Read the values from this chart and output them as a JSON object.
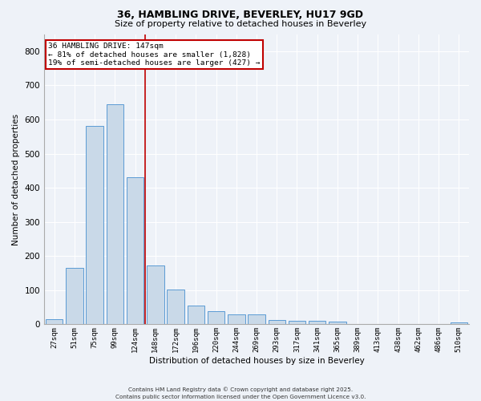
{
  "title_line1": "36, HAMBLING DRIVE, BEVERLEY, HU17 9GD",
  "title_line2": "Size of property relative to detached houses in Beverley",
  "xlabel": "Distribution of detached houses by size in Beverley",
  "ylabel": "Number of detached properties",
  "categories": [
    "27sqm",
    "51sqm",
    "75sqm",
    "99sqm",
    "124sqm",
    "148sqm",
    "172sqm",
    "196sqm",
    "220sqm",
    "244sqm",
    "269sqm",
    "293sqm",
    "317sqm",
    "341sqm",
    "365sqm",
    "389sqm",
    "413sqm",
    "438sqm",
    "462sqm",
    "486sqm",
    "510sqm"
  ],
  "values": [
    15,
    165,
    580,
    645,
    430,
    172,
    103,
    55,
    38,
    30,
    28,
    12,
    10,
    10,
    8,
    0,
    0,
    0,
    0,
    0,
    6
  ],
  "bar_color": "#c9d9e8",
  "bar_edge_color": "#5b9bd5",
  "marker_index": 5,
  "annotation_line1": "36 HAMBLING DRIVE: 147sqm",
  "annotation_line2": "← 81% of detached houses are smaller (1,828)",
  "annotation_line3": "19% of semi-detached houses are larger (427) →",
  "marker_color": "#c00000",
  "annotation_box_color": "#c00000",
  "background_color": "#eef2f8",
  "grid_color": "#ffffff",
  "ylim": [
    0,
    850
  ],
  "yticks": [
    0,
    100,
    200,
    300,
    400,
    500,
    600,
    700,
    800
  ],
  "footer_line1": "Contains HM Land Registry data © Crown copyright and database right 2025.",
  "footer_line2": "Contains public sector information licensed under the Open Government Licence v3.0."
}
